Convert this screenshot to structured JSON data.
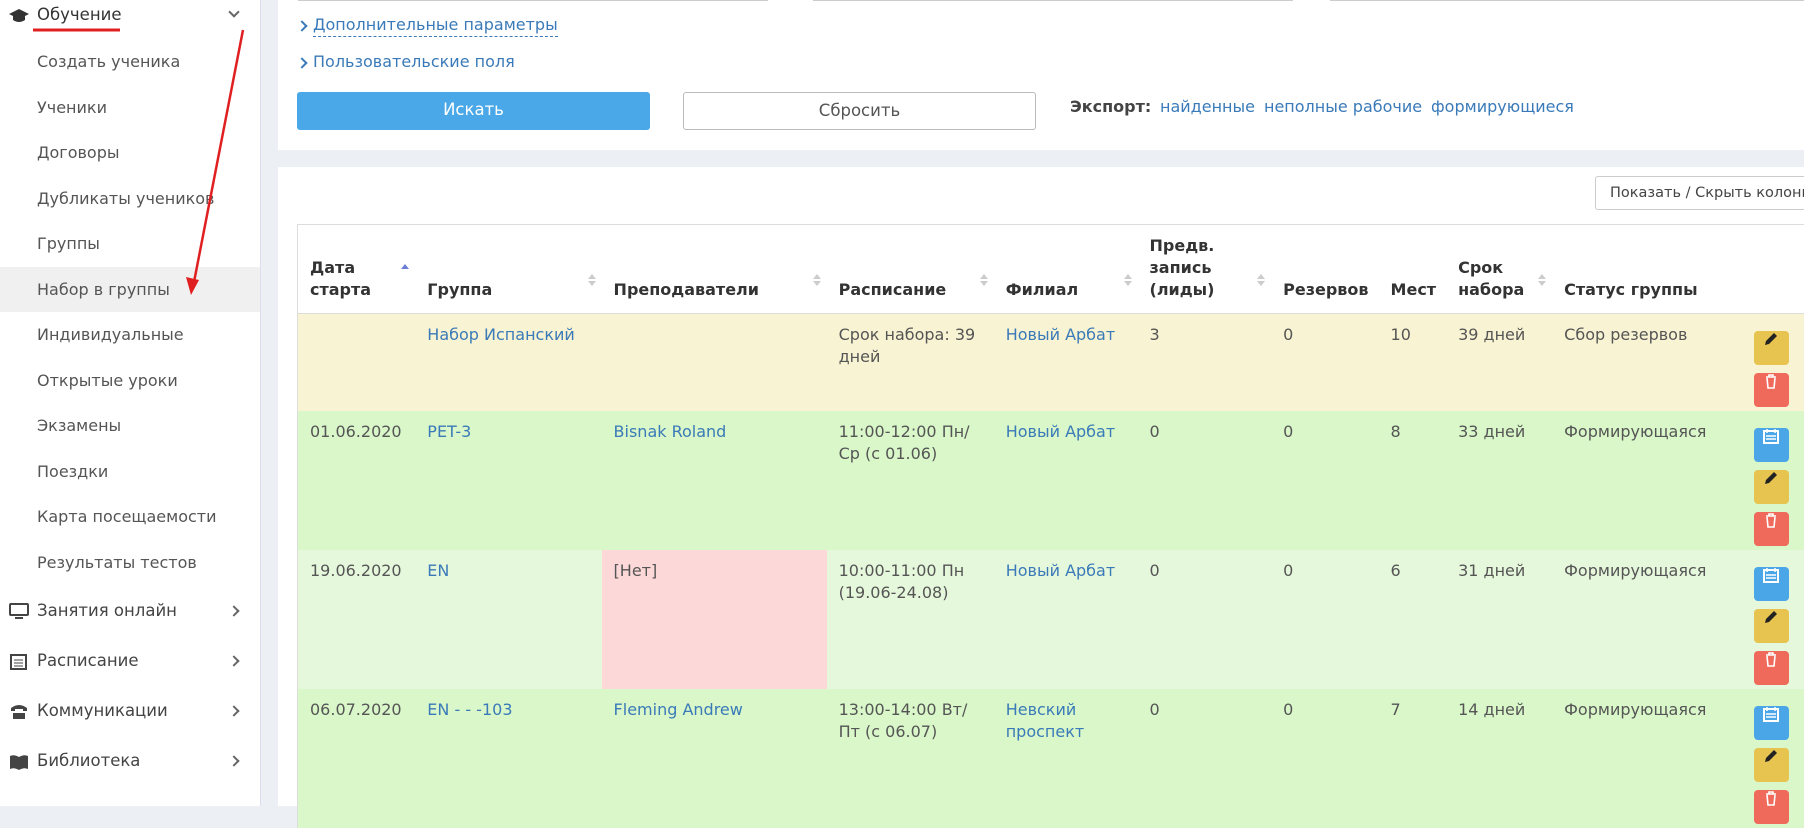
{
  "sidebar": {
    "section": "Обучение",
    "items": [
      "Создать ученика",
      "Ученики",
      "Договоры",
      "Дубликаты учеников",
      "Группы",
      "Набор в группы",
      "Индивидуальные",
      "Открытые уроки",
      "Экзамены",
      "Поездки",
      "Карта посещаемости",
      "Результаты тестов"
    ],
    "groups": [
      "Занятия онлайн",
      "Расписание",
      "Коммуникации",
      "Библиотека"
    ]
  },
  "filters": {
    "links": [
      "Дополнительные параметры",
      "Пользовательские поля"
    ],
    "search": "Искать",
    "reset": "Сбросить",
    "export_label": "Экспорт:",
    "export_links": [
      "найденные",
      "неполные рабочие",
      "формирующиеся"
    ]
  },
  "table": {
    "toggle": "Показать / Скрыть колонки",
    "headers": [
      "Дата старта",
      "Группа",
      "Преподаватели",
      "Расписание",
      "Филиал",
      "Предв. запись (лиды)",
      "Резервов",
      "Мест",
      "Срок набора",
      "Статус группы"
    ],
    "rows": [
      [
        null,
        "Набор Испанский",
        null,
        "Срок набора: 39 дней",
        "Новый Арбат",
        "3",
        "0",
        "10",
        "39 дней",
        "Сбор резервов"
      ],
      [
        "01.06.2020",
        "PET-3",
        "Bisnak Roland",
        "11:00-12:00 Пн/Ср (с 01.06)",
        "Новый Арбат",
        "0",
        "0",
        "8",
        "33 дней",
        "Формирующаяся"
      ],
      [
        "19.06.2020",
        "EN",
        "[Нет]",
        "10:00-11:00 Пн (19.06-24.08)",
        "Новый Арбат",
        "0",
        "0",
        "6",
        "31 дней",
        "Формирующаяся"
      ],
      [
        "06.07.2020",
        "EN - - -103",
        "Fleming Andrew",
        "13:00-14:00 Вт/Пт (с 06.07)",
        "Невский проспект",
        "0",
        "0",
        "7",
        "14 дней",
        "Формирующаяся"
      ]
    ]
  }
}
